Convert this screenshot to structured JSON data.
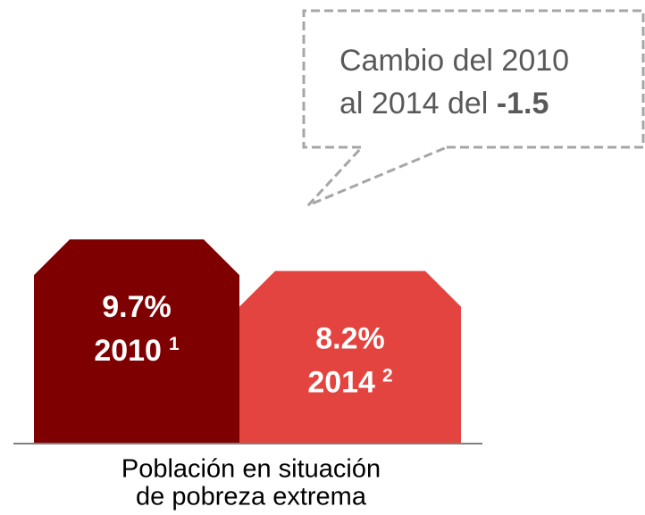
{
  "chart_data": {
    "type": "bar",
    "categories": [
      "2010",
      "2014"
    ],
    "notes": [
      "1",
      "2"
    ],
    "values": [
      9.7,
      8.2
    ],
    "value_labels": [
      "9.7%",
      "8.2%"
    ],
    "colors": [
      "#7f0000",
      "#e3443f"
    ],
    "ylim": [
      0,
      12
    ],
    "xlabel": [
      "Población en situación",
      "de pobreza extrema"
    ],
    "callout": {
      "lines": [
        "Cambio del 2010",
        "al 2014 del"
      ],
      "value": -1.5
    }
  }
}
